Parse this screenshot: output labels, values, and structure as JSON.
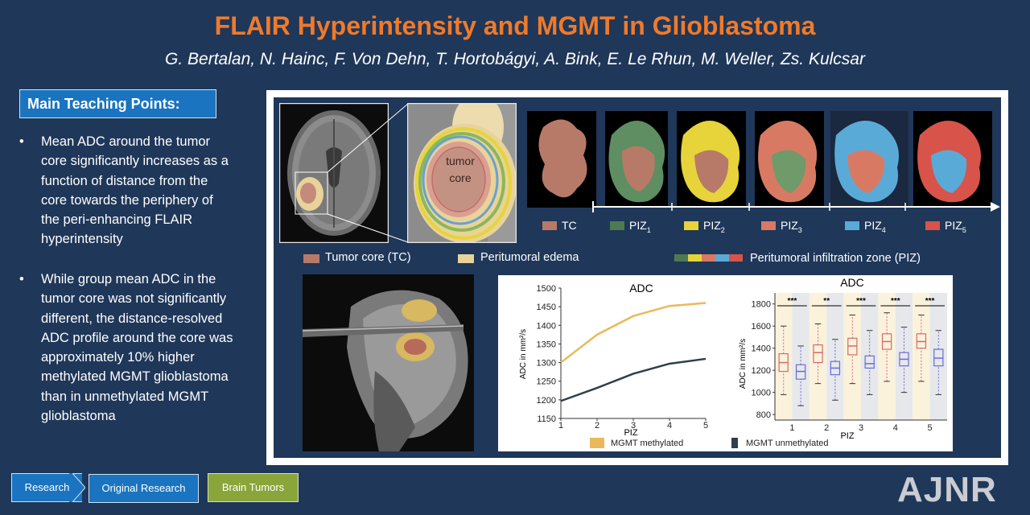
{
  "header": {
    "title": "FLAIR Hyperintensity and MGMT in Glioblastoma",
    "authors": "G. Bertalan, N. Hainc, F. Von Dehn, T. Hortobágyi, A. Bink, E. Le Rhun, M. Weller, Zs. Kulcsar"
  },
  "teaching": {
    "heading": "Main Teaching Points:",
    "bullet_char": "•",
    "points": [
      [
        "Mean ADC around the tumor",
        "core significantly increases as a",
        "function of distance from the",
        "core towards the periphery of",
        "the peri-enhancing FLAIR",
        "hyperintensity"
      ],
      [
        "While group mean ADC in the",
        "tumor core was not significantly",
        "different, the distance-resolved",
        "ADC profile around the core was",
        "approximately 10% higher",
        "methylated MGMT glioblastoma",
        "than in unmethylated MGMT",
        "glioblastoma"
      ]
    ]
  },
  "figure": {
    "tumor_label": [
      "tumor",
      "core"
    ],
    "zones": [
      {
        "label": "TC",
        "sub": "",
        "color": "#b87a68"
      },
      {
        "label": "PIZ",
        "sub": "1",
        "color": "#4e7a52"
      },
      {
        "label": "PIZ",
        "sub": "2",
        "color": "#e6d43a"
      },
      {
        "label": "PIZ",
        "sub": "3",
        "color": "#d87a63"
      },
      {
        "label": "PIZ",
        "sub": "4",
        "color": "#5aaad8"
      },
      {
        "label": "PIZ",
        "sub": "5",
        "color": "#d8534a"
      }
    ],
    "legend": {
      "tumor_core": "Tumor core (TC)",
      "edema": "Peritumoral edema",
      "piz": "Peritumoral infiltration zone (PIZ)",
      "tumor_core_color": "#b87a68",
      "edema_color": "#e8d39a"
    }
  },
  "chart_data": [
    {
      "type": "line",
      "title": "ADC",
      "xlabel": "PIZ",
      "ylabel": "ADC in mm²/s",
      "x": [
        1,
        2,
        3,
        4,
        5
      ],
      "xlim": [
        1,
        5
      ],
      "ylim": [
        1150,
        1500
      ],
      "yticks": [
        1150,
        1200,
        1250,
        1300,
        1350,
        1400,
        1450,
        1500
      ],
      "series": [
        {
          "name": "MGMT methylated",
          "color": "#e9b95a",
          "values": [
            1300,
            1375,
            1425,
            1452,
            1460
          ]
        },
        {
          "name": "MGMT unmethylated",
          "color": "#2f3f4c",
          "values": [
            1197,
            1232,
            1270,
            1297,
            1310
          ]
        }
      ],
      "legend": "bottom"
    },
    {
      "type": "box",
      "title": "ADC",
      "xlabel": "PIZ",
      "ylabel": "ADC in mm²/s",
      "categories": [
        "1",
        "2",
        "3",
        "4",
        "5"
      ],
      "ylim": [
        750,
        1900
      ],
      "yticks": [
        800,
        1000,
        1200,
        1400,
        1600,
        1800
      ],
      "significance": [
        "***",
        "**",
        "***",
        "***",
        "***"
      ],
      "series": [
        {
          "name": "MGMT methylated",
          "color": "#d66a6a",
          "boxes": [
            [
              980,
              1190,
              1270,
              1350,
              1600
            ],
            [
              1080,
              1270,
              1360,
              1430,
              1620
            ],
            [
              1080,
              1340,
              1420,
              1490,
              1700
            ],
            [
              1100,
              1390,
              1460,
              1530,
              1720
            ],
            [
              1100,
              1400,
              1460,
              1530,
              1700
            ]
          ]
        },
        {
          "name": "MGMT unmethylated",
          "color": "#6a6ad6",
          "boxes": [
            [
              880,
              1120,
              1190,
              1250,
              1420
            ],
            [
              930,
              1160,
              1220,
              1280,
              1480
            ],
            [
              980,
              1220,
              1260,
              1330,
              1560
            ],
            [
              1000,
              1240,
              1300,
              1360,
              1590
            ],
            [
              980,
              1240,
              1310,
              1390,
              1560
            ]
          ]
        }
      ]
    }
  ],
  "footer": {
    "research": "Research",
    "original": "Original Research",
    "topic": "Brain Tumors",
    "logo": "AJNR"
  }
}
